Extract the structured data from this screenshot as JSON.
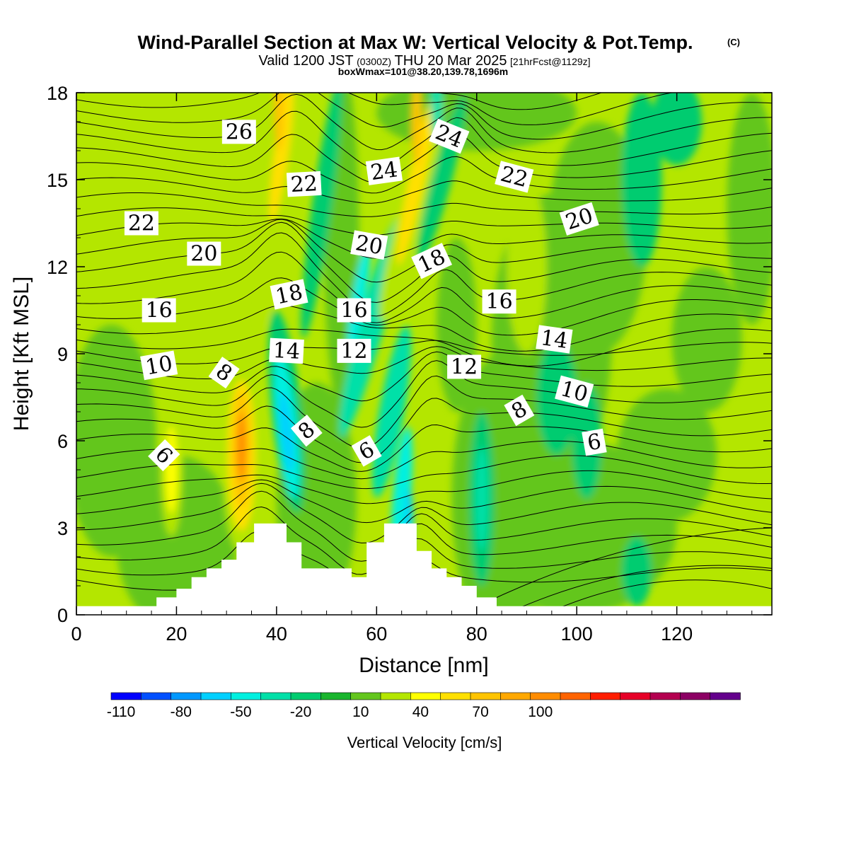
{
  "chart_data": {
    "type": "heatmap",
    "title": "Wind-Parallel Section at Max W: Vertical Velocity & Pot.Temp.",
    "title_mark": "(C)",
    "subtitle_main": "Valid 1200 JST",
    "subtitle_utc": "(0300Z)",
    "subtitle_date": "THU 20 Mar 2025",
    "subtitle_fcst": "[21hrFcst@1129z]",
    "subtitle2": "boxWmax=101@38.20,139.78,1696m",
    "xlabel": "Distance [nm]",
    "ylabel": "Height [Kft MSL]",
    "xlim": [
      0,
      139
    ],
    "ylim": [
      0,
      18
    ],
    "x_ticks": [
      "0",
      "20",
      "40",
      "60",
      "80",
      "100",
      "120"
    ],
    "y_ticks": [
      "0",
      "3",
      "6",
      "9",
      "12",
      "15",
      "18"
    ],
    "colorbar": {
      "label": "Vertical Velocity [cm/s]",
      "tick_labels": [
        "-110",
        "-80",
        "-50",
        "-20",
        "10",
        "40",
        "70",
        "100"
      ],
      "colors": [
        "#0000ff",
        "#0050ff",
        "#0098ff",
        "#00d0ff",
        "#00f0e0",
        "#00e0a8",
        "#00cc70",
        "#1ab52e",
        "#64c61e",
        "#b4e600",
        "#ffff00",
        "#ffe000",
        "#ffc400",
        "#ffa800",
        "#ff8c00",
        "#ff6400",
        "#ff1e00",
        "#e60028",
        "#b40050",
        "#8c0064",
        "#64008c"
      ]
    },
    "vertical_velocity_features": [
      {
        "kind": "updraft",
        "x": 33,
        "y_range": [
          2.5,
          8
        ],
        "peak": 101
      },
      {
        "kind": "updraft",
        "x": 19,
        "y_range": [
          3,
          7
        ],
        "peak": 40
      },
      {
        "kind": "updraft",
        "x": 42,
        "y_range": [
          9,
          18
        ],
        "peak": 70
      },
      {
        "kind": "updraft",
        "x": 68,
        "y_range": [
          11,
          18
        ],
        "peak": 70
      },
      {
        "kind": "downdraft",
        "x": 42,
        "y_range": [
          3,
          10
        ],
        "peak": -55
      },
      {
        "kind": "downdraft",
        "x": 66,
        "y_range": [
          2,
          12
        ],
        "peak": -50
      },
      {
        "kind": "downdraft",
        "x": 57,
        "y_range": [
          12,
          18
        ],
        "peak": -40
      },
      {
        "kind": "downdraft",
        "x": 81,
        "y_range": [
          2,
          7
        ],
        "peak": -30
      }
    ],
    "theta_contour_labels": [
      {
        "value": "26",
        "x": 32.5,
        "y": 16.65,
        "angle": 0
      },
      {
        "value": "22",
        "x": 45.5,
        "y": 14.85,
        "angle": -3
      },
      {
        "value": "24",
        "x": 61.5,
        "y": 15.3,
        "angle": -8
      },
      {
        "value": "24",
        "x": 74.5,
        "y": 16.5,
        "angle": 22
      },
      {
        "value": "22",
        "x": 87.5,
        "y": 15.1,
        "angle": 15
      },
      {
        "value": "20",
        "x": 100.5,
        "y": 13.65,
        "angle": -18
      },
      {
        "value": "22",
        "x": 13,
        "y": 13.5,
        "angle": 0
      },
      {
        "value": "20",
        "x": 25.5,
        "y": 12.45,
        "angle": 0
      },
      {
        "value": "20",
        "x": 58.5,
        "y": 12.75,
        "angle": 10
      },
      {
        "value": "18",
        "x": 71,
        "y": 12.2,
        "angle": -25
      },
      {
        "value": "18",
        "x": 42.5,
        "y": 11.05,
        "angle": -12
      },
      {
        "value": "16",
        "x": 16.5,
        "y": 10.5,
        "angle": 0
      },
      {
        "value": "16",
        "x": 55.5,
        "y": 10.5,
        "angle": 0
      },
      {
        "value": "16",
        "x": 84.5,
        "y": 10.8,
        "angle": 0
      },
      {
        "value": "14",
        "x": 42,
        "y": 9.1,
        "angle": 3
      },
      {
        "value": "12",
        "x": 55.5,
        "y": 9.1,
        "angle": 0
      },
      {
        "value": "14",
        "x": 95.5,
        "y": 9.5,
        "angle": 8
      },
      {
        "value": "12",
        "x": 77.5,
        "y": 8.55,
        "angle": 0
      },
      {
        "value": "10",
        "x": 16.5,
        "y": 8.6,
        "angle": -10
      },
      {
        "value": "8",
        "x": 29.5,
        "y": 8.35,
        "angle": 35
      },
      {
        "value": "10",
        "x": 99.5,
        "y": 7.7,
        "angle": 15
      },
      {
        "value": "8",
        "x": 88.5,
        "y": 7.05,
        "angle": -30
      },
      {
        "value": "8",
        "x": 46,
        "y": 6.35,
        "angle": -40
      },
      {
        "value": "6",
        "x": 103.5,
        "y": 5.95,
        "angle": -10
      },
      {
        "value": "6",
        "x": 58,
        "y": 5.65,
        "angle": -30
      },
      {
        "value": "6",
        "x": 17.5,
        "y": 5.5,
        "angle": 45
      }
    ]
  }
}
